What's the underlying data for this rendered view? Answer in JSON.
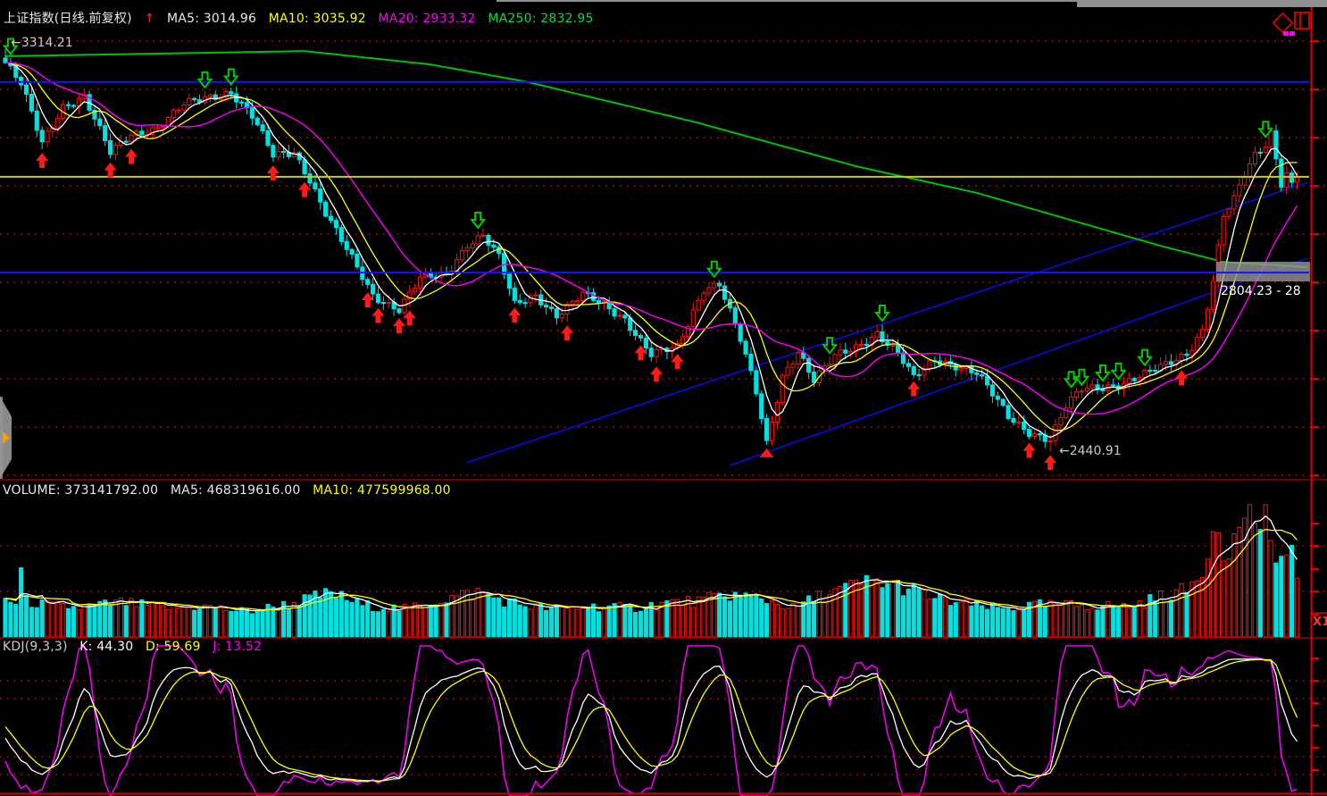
{
  "header": {
    "title": "上证指数(日线.前复权)",
    "trend_arrow": "↑",
    "ma": [
      {
        "text": "MA5: 3014.96",
        "color": "#e8e8e8"
      },
      {
        "text": "MA10: 3035.92",
        "color": "#ffff00"
      },
      {
        "text": "MA20: 2933.32",
        "color": "#ff00ff"
      },
      {
        "text": "MA250: 2832.95",
        "color": "#00dd44"
      }
    ]
  },
  "volume_header": {
    "items": [
      {
        "text": "VOLUME: 373141792.00",
        "color": "#e8e8e8"
      },
      {
        "text": "MA5: 468319616.00",
        "color": "#e8e8e8"
      },
      {
        "text": "MA10: 477599968.00",
        "color": "#ffff00"
      }
    ]
  },
  "kdj_header": {
    "items": [
      {
        "text": "KDJ(9,3,3)",
        "color": "#cccccc"
      },
      {
        "text": "K: 44.30",
        "color": "#ffffff"
      },
      {
        "text": "D: 59.69",
        "color": "#ffff00"
      },
      {
        "text": "J: 13.52",
        "color": "#ff00ff"
      }
    ]
  },
  "annotations": {
    "high_label": "←3314.21",
    "low_label": "←2440.91",
    "range_tooltip": "2804.23 - 28",
    "zoom_indicator": "X1"
  },
  "chart_data": {
    "type": "candlestick",
    "panes": [
      "price",
      "volume",
      "kdj"
    ],
    "n_bars": 247,
    "price_top": 3421,
    "price_bottom": 2381,
    "high_value": 3314.21,
    "low_value": 2440.91,
    "kdj_params": [
      9,
      3,
      3
    ],
    "close_anchors": [
      [
        0,
        3285
      ],
      [
        3,
        3237
      ],
      [
        7,
        3110
      ],
      [
        11,
        3192
      ],
      [
        15,
        3211
      ],
      [
        20,
        3087
      ],
      [
        24,
        3130
      ],
      [
        29,
        3145
      ],
      [
        34,
        3192
      ],
      [
        39,
        3211
      ],
      [
        43,
        3223
      ],
      [
        47,
        3169
      ],
      [
        51,
        3081
      ],
      [
        55,
        3091
      ],
      [
        58,
        3033
      ],
      [
        61,
        2959
      ],
      [
        65,
        2877
      ],
      [
        70,
        2780
      ],
      [
        75,
        2751
      ],
      [
        79,
        2815
      ],
      [
        84,
        2823
      ],
      [
        88,
        2893
      ],
      [
        91,
        2912
      ],
      [
        94,
        2862
      ],
      [
        97,
        2757
      ],
      [
        101,
        2780
      ],
      [
        105,
        2738
      ],
      [
        110,
        2780
      ],
      [
        114,
        2757
      ],
      [
        118,
        2730
      ],
      [
        123,
        2652
      ],
      [
        128,
        2664
      ],
      [
        133,
        2796
      ],
      [
        136,
        2808
      ],
      [
        140,
        2683
      ],
      [
        143,
        2567
      ],
      [
        145,
        2456
      ],
      [
        148,
        2606
      ],
      [
        151,
        2660
      ],
      [
        154,
        2594
      ],
      [
        158,
        2645
      ],
      [
        162,
        2668
      ],
      [
        166,
        2699
      ],
      [
        170,
        2652
      ],
      [
        173,
        2598
      ],
      [
        177,
        2641
      ],
      [
        181,
        2629
      ],
      [
        185,
        2610
      ],
      [
        188,
        2563
      ],
      [
        191,
        2516
      ],
      [
        195,
        2485
      ],
      [
        199,
        2466
      ],
      [
        202,
        2536
      ],
      [
        205,
        2575
      ],
      [
        209,
        2582
      ],
      [
        213,
        2590
      ],
      [
        217,
        2606
      ],
      [
        221,
        2628
      ],
      [
        225,
        2655
      ],
      [
        228,
        2705
      ],
      [
        230,
        2810
      ],
      [
        232,
        2950
      ],
      [
        234,
        2985
      ],
      [
        236,
        3040
      ],
      [
        238,
        3085
      ],
      [
        240,
        3110
      ],
      [
        241,
        3135
      ],
      [
        242,
        3080
      ],
      [
        243,
        3025
      ],
      [
        244,
        3045
      ],
      [
        245,
        3020
      ],
      [
        246,
        3040
      ]
    ],
    "ma250_anchors": [
      [
        0,
        3299
      ],
      [
        26,
        3304
      ],
      [
        57,
        3310
      ],
      [
        81,
        3281
      ],
      [
        99,
        3244
      ],
      [
        131,
        3157
      ],
      [
        162,
        3060
      ],
      [
        185,
        3002
      ],
      [
        220,
        2887
      ],
      [
        232,
        2852
      ],
      [
        248,
        2841
      ]
    ],
    "volume_anchors": [
      [
        0,
        0.28
      ],
      [
        2,
        0.26
      ],
      [
        3,
        0.5
      ],
      [
        4,
        0.27
      ],
      [
        8,
        0.24
      ],
      [
        14,
        0.22
      ],
      [
        22,
        0.26
      ],
      [
        30,
        0.22
      ],
      [
        38,
        0.23
      ],
      [
        46,
        0.19
      ],
      [
        54,
        0.25
      ],
      [
        62,
        0.33
      ],
      [
        68,
        0.24
      ],
      [
        76,
        0.21
      ],
      [
        84,
        0.29
      ],
      [
        90,
        0.34
      ],
      [
        96,
        0.26
      ],
      [
        104,
        0.21
      ],
      [
        112,
        0.23
      ],
      [
        120,
        0.22
      ],
      [
        126,
        0.26
      ],
      [
        132,
        0.27
      ],
      [
        138,
        0.32
      ],
      [
        144,
        0.29
      ],
      [
        150,
        0.22
      ],
      [
        156,
        0.32
      ],
      [
        161,
        0.38
      ],
      [
        165,
        0.42
      ],
      [
        169,
        0.4
      ],
      [
        173,
        0.35
      ],
      [
        178,
        0.28
      ],
      [
        184,
        0.24
      ],
      [
        190,
        0.21
      ],
      [
        196,
        0.24
      ],
      [
        202,
        0.24
      ],
      [
        208,
        0.24
      ],
      [
        214,
        0.23
      ],
      [
        219,
        0.29
      ],
      [
        222,
        0.33
      ],
      [
        225,
        0.35
      ],
      [
        227,
        0.45
      ],
      [
        229,
        0.62
      ],
      [
        230,
        0.85
      ],
      [
        231,
        0.93
      ],
      [
        232,
        0.7
      ],
      [
        233,
        0.56
      ],
      [
        235,
        0.88
      ],
      [
        237,
        1.0
      ],
      [
        238,
        0.95
      ],
      [
        239,
        0.8
      ],
      [
        240,
        0.85
      ],
      [
        241,
        0.64
      ],
      [
        242,
        0.55
      ],
      [
        243,
        0.74
      ],
      [
        244,
        0.6
      ],
      [
        245,
        0.66
      ],
      [
        246,
        0.46
      ]
    ],
    "red_up_arrow_bars": [
      7,
      20,
      24,
      51,
      57,
      69,
      71,
      75,
      77,
      97,
      107,
      121,
      124,
      128,
      173,
      195,
      199,
      224
    ],
    "red_triangle_bars": [
      145
    ],
    "green_down_arrow_bars": [
      1,
      38,
      43,
      90,
      135,
      157,
      167,
      203,
      205,
      209,
      212,
      217,
      240
    ],
    "levels": {
      "blue_lines": [
        3243,
        2829
      ],
      "yellow_line": 3037
    },
    "trendlines": [
      [
        88,
        2417,
        248,
        3025
      ],
      [
        138,
        2410,
        248,
        2860
      ]
    ],
    "grid": {
      "main_ys": [
        46,
        100,
        154,
        208,
        262,
        316,
        370,
        424,
        478,
        532
      ],
      "volume_ys": [
        611,
        662
      ],
      "kdj_ys": [
        762,
        782,
        847,
        867
      ]
    },
    "colors": {
      "up": "#ff1010",
      "down": "#00e2e2",
      "ma5": "#ffffff",
      "ma10": "#ffff00",
      "ma20": "#f000f0",
      "ma250": "#00c000",
      "grid": "#c01010",
      "level_blue": "#1414ff",
      "level_yellow": "#cdcd00",
      "trendline": "#0a0ae6",
      "axis": "#e00000",
      "panel_border": "#9a0000",
      "arrow_red": "#ff1a1a",
      "arrow_green": "#00cc00",
      "tooltip_box": "rgba(150,150,150,0.8)"
    }
  }
}
